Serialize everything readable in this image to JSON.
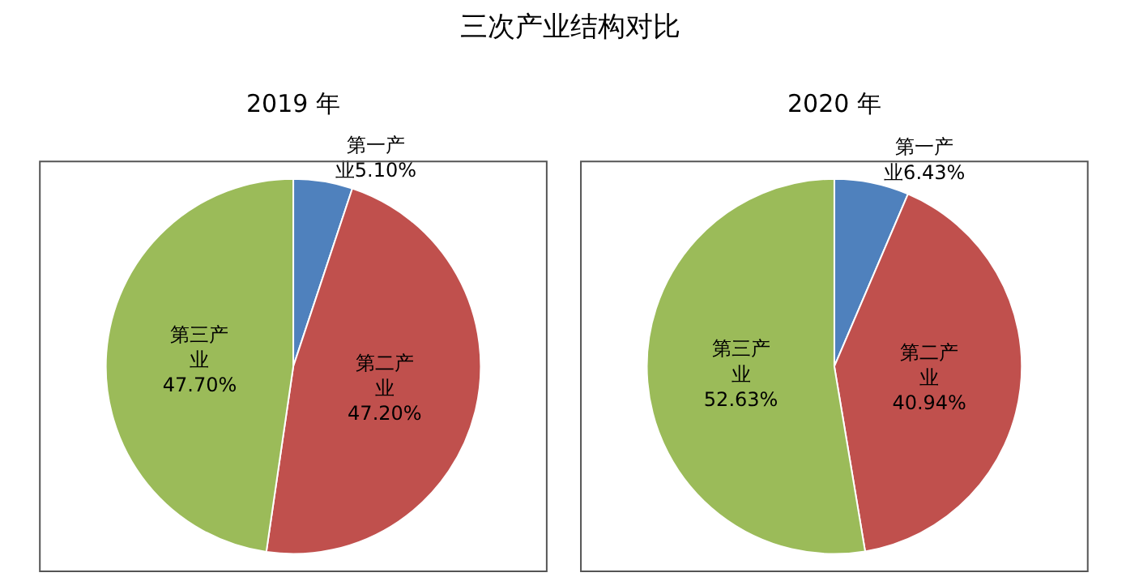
{
  "chart_data": [
    {
      "type": "other",
      "title": "三次产业结构对比"
    },
    {
      "type": "pie",
      "title": "2019 年",
      "categories": [
        "第一产业",
        "第二产业",
        "第三产业"
      ],
      "values": [
        5.1,
        47.2,
        47.7
      ],
      "value_labels": [
        "5.10%",
        "47.20%",
        "47.70%"
      ],
      "colors": [
        "#4f81bd",
        "#c0504d",
        "#9bbb59"
      ]
    },
    {
      "type": "pie",
      "title": "2020 年",
      "categories": [
        "第一产业",
        "第二产业",
        "第三产业"
      ],
      "values": [
        6.43,
        40.94,
        52.63
      ],
      "value_labels": [
        "6.43%",
        "40.94%",
        "52.63%"
      ],
      "colors": [
        "#4f81bd",
        "#c0504d",
        "#9bbb59"
      ]
    }
  ]
}
